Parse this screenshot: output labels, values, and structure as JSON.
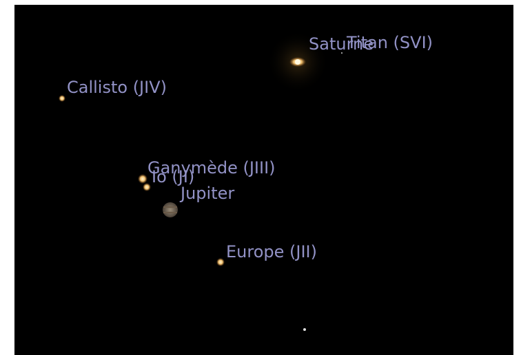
{
  "labels": {
    "saturn": "Saturne",
    "titan": "Titan (SVI)",
    "callisto": "Callisto (JIV)",
    "ganymede": "Ganymède (JIII)",
    "io": "Io (JI)",
    "jupiter": "Jupiter",
    "europa": "Europe (JII)"
  }
}
